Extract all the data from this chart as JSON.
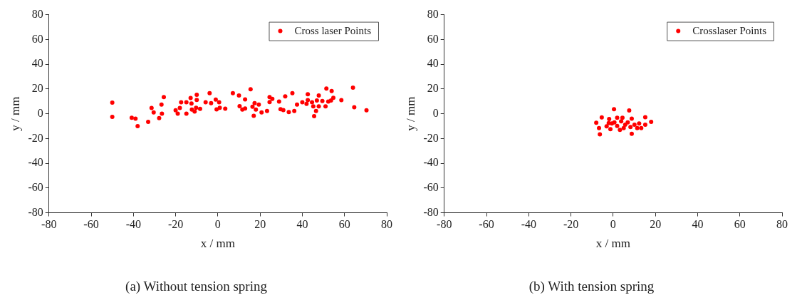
{
  "chart_data": [
    {
      "type": "scatter",
      "title": "(a) Without tension spring",
      "xlabel": "x / mm",
      "ylabel": "y / mm",
      "xlim": [
        -80,
        80
      ],
      "ylim": [
        -80,
        80
      ],
      "xticks": [
        -80,
        -60,
        -40,
        -20,
        0,
        20,
        40,
        60,
        80
      ],
      "yticks": [
        -80,
        -60,
        -40,
        -20,
        0,
        20,
        40,
        60,
        80
      ],
      "grid": false,
      "legend": "top right",
      "marker": "circle",
      "series": [
        {
          "name": "Cross laser Points",
          "color": "#ff0000",
          "x": [
            -50,
            -50,
            -40.8,
            -39,
            -38,
            -33,
            -31.4,
            -30.4,
            -27.8,
            -26.7,
            -26.5,
            -25.6,
            -20,
            -19,
            -18,
            -17.4,
            -14.9,
            -14.9,
            -12.9,
            -12.5,
            -12.3,
            -11,
            -10.3,
            -10,
            -10,
            -8.4,
            -5.8,
            -3.9,
            -3.2,
            -1,
            -0.6,
            0.6,
            0.9,
            3.5,
            7.1,
            10,
            10.3,
            11.6,
            12.9,
            12.9,
            15.5,
            16.4,
            17,
            17.4,
            18,
            19.4,
            20.7,
            23.3,
            24.5,
            24.5,
            25.8,
            29,
            29.7,
            31,
            31.9,
            33.6,
            35.3,
            36.2,
            37.5,
            40,
            42,
            42.6,
            42.6,
            44.6,
            45.2,
            45.6,
            46.5,
            46.9,
            47.8,
            47.8,
            49.5,
            51,
            51.4,
            52.3,
            53.6,
            53.9,
            54.7,
            58.5,
            64,
            64.6,
            70.4
          ],
          "values": [
            9,
            -2.5,
            -3.3,
            -4,
            -10,
            -6.5,
            4.6,
            1,
            -3.5,
            7.4,
            0,
            13.4,
            2.8,
            0,
            4.6,
            9.2,
            9.2,
            0,
            12.7,
            8.3,
            3.3,
            1.8,
            4.8,
            15.3,
            11.2,
            3.9,
            9.2,
            16.6,
            8.5,
            11.4,
            3.5,
            9.2,
            4.8,
            4.1,
            16.6,
            14.7,
            6.1,
            3.3,
            11.6,
            4.2,
            19.7,
            5.7,
            -1.7,
            8.5,
            3.3,
            7.4,
            1.1,
            2.2,
            9.4,
            13.4,
            12,
            9.8,
            3.7,
            2.9,
            14,
            1.3,
            16.6,
            2.2,
            7.4,
            9.2,
            7.9,
            15.8,
            11,
            9.2,
            5.9,
            -2,
            2.2,
            10.7,
            14.7,
            5.9,
            10.3,
            5.9,
            20.4,
            9.8,
            10.7,
            18.4,
            12.9,
            11,
            21,
            5.3,
            2.8
          ]
        }
      ]
    },
    {
      "type": "scatter",
      "title": "(b) With tension spring",
      "xlabel": "x / mm",
      "ylabel": "y / mm",
      "xlim": [
        -80,
        80
      ],
      "ylim": [
        -80,
        80
      ],
      "xticks": [
        -80,
        -60,
        -40,
        -20,
        0,
        20,
        40,
        60,
        80
      ],
      "yticks": [
        -80,
        -60,
        -40,
        -20,
        0,
        20,
        40,
        60,
        80
      ],
      "grid": false,
      "legend": "top right",
      "marker": "circle",
      "series": [
        {
          "name": "Crosslaser Points",
          "color": "#ff0000",
          "x": [
            0.4,
            7.6,
            -5.4,
            -8,
            -6.7,
            -6.3,
            15.2,
            18,
            15.2,
            13.3,
            8.8,
            -1.9,
            -0.6,
            1.9,
            3.8,
            5,
            6.9,
            8.8,
            10.1,
            11.4,
            -3.1,
            -1.3,
            3.2,
            0.6,
            4.4,
            5.7,
            8.2,
            1.9,
            -2.1,
            12.3
          ],
          "values": [
            3.7,
            2.6,
            -2.9,
            -7.3,
            -11.6,
            -16.6,
            -2.8,
            -6.6,
            -8.8,
            -11.6,
            -16.2,
            -4.2,
            -7.9,
            -9.8,
            -6.1,
            -11.6,
            -7,
            -3.9,
            -8.8,
            -11.6,
            -10.1,
            -12.5,
            -13,
            -7,
            -3.3,
            -8.8,
            -10.7,
            -3.3,
            -7.5,
            -7.9
          ]
        }
      ]
    }
  ]
}
